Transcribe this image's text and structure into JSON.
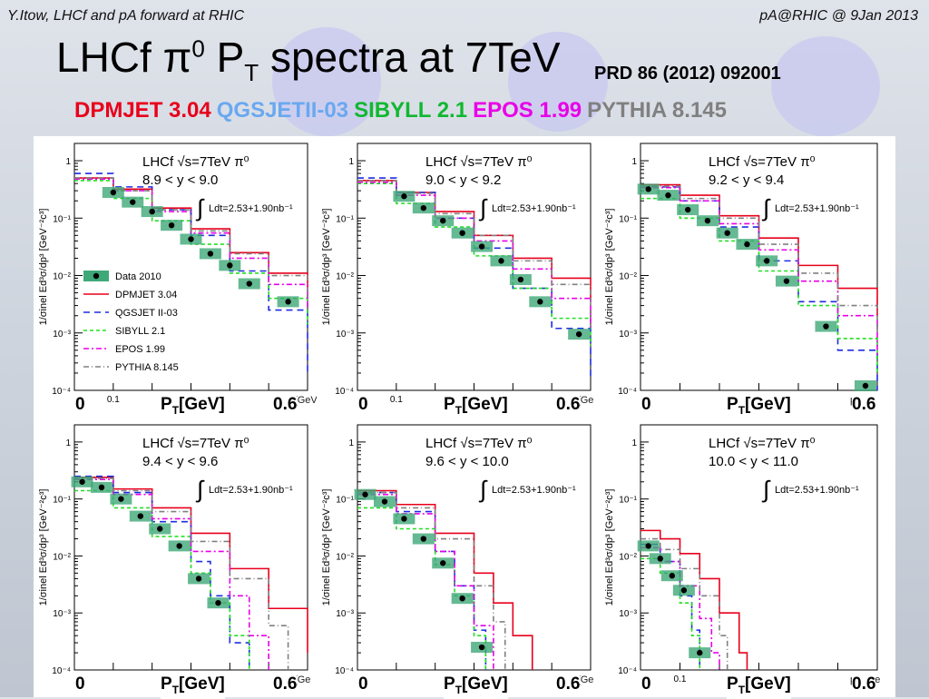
{
  "header": {
    "left": "Y.Itow,  LHCf and pA forward at RHIC",
    "right": "pA@RHIC @ 9Jan 2013"
  },
  "title": {
    "text_a": "LHCf ",
    "pi": "π",
    "sup": "0",
    "text_b": " P",
    "sub": "T",
    "text_c": " spectra at 7TeV"
  },
  "reference": "PRD 86 (2012) 092001",
  "models_line": [
    {
      "name": "DPMJET",
      "version": "3.04",
      "color": "#e8001c"
    },
    {
      "name": "QGSJETII-03",
      "version": "",
      "color": "#6aa8f0"
    },
    {
      "name": "SIBYLL",
      "version": "2.1",
      "color": "#10b830"
    },
    {
      "name": "EPOS",
      "version": "1.99",
      "color": "#e800e8"
    },
    {
      "name": "PYTHIA",
      "version": "8.145",
      "color": "#808080"
    }
  ],
  "colors": {
    "data": "#000000",
    "data_box": "#3fa878",
    "dpmjet": "#e8001c",
    "qgsjet": "#1c2ce0",
    "sibyll": "#22e022",
    "epos": "#e800e8",
    "pythia": "#808080"
  },
  "footer_labels": {
    "zero": "0",
    "max": "0.6",
    "pt_p": "P",
    "pt_sub": "T",
    "pt_unit": "[GeV]"
  },
  "chart_data": [
    {
      "type": "line",
      "label1": "LHCf √s=7TeV π⁰",
      "label2": "8.9 < y < 9.0",
      "lumi": "Ldt=2.53+1.90nb⁻¹",
      "ylabel": "1/σinel Ed³σ/dp³ [GeV⁻²c³]",
      "xlabel": "pT [GeV]",
      "xlim": [
        0,
        0.6
      ],
      "yscale": "log",
      "ylim": [
        0.0001,
        2
      ],
      "yticks": [
        "10⁻⁴",
        "10⁻³",
        "10⁻²",
        "10⁻¹",
        "1"
      ],
      "xtick": "0.1",
      "legend": true,
      "legend_entries": [
        "Data 2010",
        "DPMJET 3.04",
        "QGSJET II-03",
        "SIBYLL 2.1",
        "EPOS 1.99",
        "PYTHIA 8.145"
      ],
      "data": {
        "x": [
          0.1,
          0.15,
          0.2,
          0.25,
          0.3,
          0.35,
          0.4,
          0.45,
          0.55
        ],
        "y": [
          0.28,
          0.19,
          0.13,
          0.075,
          0.043,
          0.024,
          0.015,
          0.0072,
          0.0035
        ]
      },
      "models": {
        "dpmjet": [
          [
            0,
            0.5
          ],
          [
            0.1,
            0.32
          ],
          [
            0.2,
            0.15
          ],
          [
            0.3,
            0.065
          ],
          [
            0.4,
            0.025
          ],
          [
            0.5,
            0.011
          ],
          [
            0.6,
            0.006
          ]
        ],
        "qgsjet": [
          [
            0,
            0.6
          ],
          [
            0.1,
            0.35
          ],
          [
            0.2,
            0.14
          ],
          [
            0.3,
            0.05
          ],
          [
            0.4,
            0.012
          ],
          [
            0.5,
            0.0025
          ],
          [
            0.6,
            0.0002
          ]
        ],
        "sibyll": [
          [
            0,
            0.45
          ],
          [
            0.1,
            0.22
          ],
          [
            0.2,
            0.09
          ],
          [
            0.3,
            0.035
          ],
          [
            0.4,
            0.011
          ],
          [
            0.5,
            0.004
          ],
          [
            0.6,
            0.0014
          ]
        ],
        "epos": [
          [
            0,
            0.48
          ],
          [
            0.1,
            0.3
          ],
          [
            0.2,
            0.13
          ],
          [
            0.3,
            0.055
          ],
          [
            0.4,
            0.02
          ],
          [
            0.5,
            0.007
          ],
          [
            0.6,
            0.0025
          ]
        ],
        "pythia": [
          [
            0,
            0.5
          ],
          [
            0.1,
            0.3
          ],
          [
            0.2,
            0.14
          ],
          [
            0.3,
            0.06
          ],
          [
            0.4,
            0.024
          ],
          [
            0.5,
            0.01
          ],
          [
            0.6,
            0.005
          ]
        ]
      }
    },
    {
      "type": "line",
      "label1": "LHCf √s=7TeV π⁰",
      "label2": "9.0 < y < 9.2",
      "lumi": "Ldt=2.53+1.90nb⁻¹",
      "ylabel": "1/σinel Ed³σ/dp³ [GeV⁻²c³]",
      "xlabel": "pT [Ge",
      "xlim": [
        0,
        0.6
      ],
      "yscale": "log",
      "ylim": [
        0.0001,
        2
      ],
      "yticks": [
        "10⁻⁴",
        "10⁻³",
        "10⁻²",
        "10⁻¹",
        "1"
      ],
      "xtick": "0.1",
      "legend": false,
      "data": {
        "x": [
          0.12,
          0.17,
          0.22,
          0.27,
          0.32,
          0.37,
          0.42,
          0.47,
          0.57
        ],
        "y": [
          0.24,
          0.15,
          0.09,
          0.055,
          0.032,
          0.018,
          0.0085,
          0.0035,
          0.00095
        ]
      },
      "models": {
        "dpmjet": [
          [
            0,
            0.45
          ],
          [
            0.1,
            0.28
          ],
          [
            0.2,
            0.13
          ],
          [
            0.3,
            0.05
          ],
          [
            0.4,
            0.02
          ],
          [
            0.5,
            0.009
          ],
          [
            0.6,
            0.004
          ]
        ],
        "qgsjet": [
          [
            0,
            0.5
          ],
          [
            0.1,
            0.28
          ],
          [
            0.2,
            0.1
          ],
          [
            0.3,
            0.03
          ],
          [
            0.4,
            0.006
          ],
          [
            0.5,
            0.0012
          ],
          [
            0.6,
            0.00015
          ]
        ],
        "sibyll": [
          [
            0,
            0.4
          ],
          [
            0.1,
            0.18
          ],
          [
            0.2,
            0.07
          ],
          [
            0.3,
            0.022
          ],
          [
            0.4,
            0.006
          ],
          [
            0.5,
            0.0018
          ],
          [
            0.6,
            0.0006
          ]
        ],
        "epos": [
          [
            0,
            0.42
          ],
          [
            0.1,
            0.25
          ],
          [
            0.2,
            0.1
          ],
          [
            0.3,
            0.04
          ],
          [
            0.4,
            0.013
          ],
          [
            0.5,
            0.004
          ],
          [
            0.6,
            0.0012
          ]
        ],
        "pythia": [
          [
            0,
            0.45
          ],
          [
            0.1,
            0.27
          ],
          [
            0.2,
            0.12
          ],
          [
            0.3,
            0.05
          ],
          [
            0.4,
            0.018
          ],
          [
            0.5,
            0.007
          ],
          [
            0.6,
            0.003
          ]
        ]
      }
    },
    {
      "type": "line",
      "label1": "LHCf √s=7TeV π⁰",
      "label2": "9.2 < y < 9.4",
      "lumi": "Ldt=2.53+1.90nb⁻¹",
      "ylabel": "1/σinel Ed³σ/dp³ [GeV⁻²c³]",
      "xlabel": "pT",
      "xlim": [
        0,
        0.6
      ],
      "yscale": "log",
      "ylim": [
        0.0001,
        2
      ],
      "yticks": [
        "10⁻⁴",
        "10⁻³",
        "10⁻²",
        "10⁻¹",
        "1"
      ],
      "xtick": "",
      "legend": false,
      "data": {
        "x": [
          0.02,
          0.07,
          0.12,
          0.17,
          0.22,
          0.27,
          0.32,
          0.37,
          0.47,
          0.57
        ],
        "y": [
          0.32,
          0.25,
          0.14,
          0.09,
          0.055,
          0.035,
          0.018,
          0.008,
          0.0013,
          0.00012
        ]
      },
      "models": {
        "dpmjet": [
          [
            0,
            0.38
          ],
          [
            0.1,
            0.25
          ],
          [
            0.2,
            0.11
          ],
          [
            0.3,
            0.045
          ],
          [
            0.4,
            0.015
          ],
          [
            0.5,
            0.006
          ],
          [
            0.6,
            0.002
          ]
        ],
        "qgsjet": [
          [
            0,
            0.35
          ],
          [
            0.1,
            0.2
          ],
          [
            0.2,
            0.07
          ],
          [
            0.3,
            0.018
          ],
          [
            0.4,
            0.0035
          ],
          [
            0.5,
            0.0005
          ],
          [
            0.6,
            8e-05
          ]
        ],
        "sibyll": [
          [
            0,
            0.22
          ],
          [
            0.1,
            0.1
          ],
          [
            0.2,
            0.04
          ],
          [
            0.3,
            0.012
          ],
          [
            0.4,
            0.003
          ],
          [
            0.5,
            0.0008
          ],
          [
            0.6,
            0.0002
          ]
        ],
        "epos": [
          [
            0,
            0.34
          ],
          [
            0.1,
            0.2
          ],
          [
            0.2,
            0.08
          ],
          [
            0.3,
            0.028
          ],
          [
            0.4,
            0.008
          ],
          [
            0.5,
            0.002
          ],
          [
            0.6,
            0.0004
          ]
        ],
        "pythia": [
          [
            0,
            0.36
          ],
          [
            0.1,
            0.22
          ],
          [
            0.2,
            0.1
          ],
          [
            0.3,
            0.035
          ],
          [
            0.4,
            0.011
          ],
          [
            0.5,
            0.003
          ],
          [
            0.6,
            0.001
          ]
        ]
      }
    },
    {
      "type": "line",
      "label1": "LHCf √s=7TeV π⁰",
      "label2": "9.4 < y < 9.6",
      "lumi": "Ldt=2.53+1.90nb⁻¹",
      "ylabel": "1/σinel Ed³σ/dp³ [GeV⁻²c³]",
      "xlabel": "pT [Ge",
      "xlim": [
        0,
        0.6
      ],
      "yscale": "log",
      "ylim": [
        0.0001,
        2
      ],
      "yticks": [
        "10⁻⁴",
        "10⁻³",
        "10⁻²",
        "10⁻¹",
        "1"
      ],
      "xtick": "",
      "legend": false,
      "data": {
        "x": [
          0.02,
          0.07,
          0.12,
          0.17,
          0.22,
          0.27,
          0.32,
          0.37
        ],
        "y": [
          0.2,
          0.16,
          0.1,
          0.05,
          0.03,
          0.015,
          0.004,
          0.0015
        ]
      },
      "models": {
        "dpmjet": [
          [
            0,
            0.24
          ],
          [
            0.1,
            0.15
          ],
          [
            0.2,
            0.07
          ],
          [
            0.3,
            0.025
          ],
          [
            0.4,
            0.006
          ],
          [
            0.5,
            0.0012
          ],
          [
            0.6,
            0.0002
          ]
        ],
        "qgsjet": [
          [
            0,
            0.25
          ],
          [
            0.1,
            0.13
          ],
          [
            0.2,
            0.04
          ],
          [
            0.3,
            0.008
          ],
          [
            0.35,
            0.002
          ],
          [
            0.4,
            0.0003
          ],
          [
            0.45,
            0.0001
          ]
        ],
        "sibyll": [
          [
            0,
            0.14
          ],
          [
            0.1,
            0.07
          ],
          [
            0.2,
            0.022
          ],
          [
            0.3,
            0.005
          ],
          [
            0.35,
            0.0015
          ],
          [
            0.4,
            0.0004
          ],
          [
            0.45,
            0.0001
          ]
        ],
        "epos": [
          [
            0,
            0.22
          ],
          [
            0.1,
            0.12
          ],
          [
            0.2,
            0.045
          ],
          [
            0.3,
            0.012
          ],
          [
            0.4,
            0.002
          ],
          [
            0.45,
            0.0004
          ],
          [
            0.5,
            0.0001
          ]
        ],
        "pythia": [
          [
            0,
            0.23
          ],
          [
            0.1,
            0.14
          ],
          [
            0.2,
            0.06
          ],
          [
            0.3,
            0.018
          ],
          [
            0.4,
            0.004
          ],
          [
            0.5,
            0.0006
          ],
          [
            0.55,
            0.0001
          ]
        ]
      }
    },
    {
      "type": "line",
      "label1": "LHCf √s=7TeV π⁰",
      "label2": "9.6 < y < 10.0",
      "lumi": "Ldt=2.53+1.90nb⁻¹",
      "ylabel": "1/σinel Ed³σ/dp³ [GeV⁻²c³]",
      "xlabel": "pT [Ge",
      "xlim": [
        0,
        0.6
      ],
      "yscale": "log",
      "ylim": [
        0.0001,
        2
      ],
      "yticks": [
        "10⁻⁴",
        "10⁻³",
        "10⁻²",
        "10⁻¹",
        "1"
      ],
      "xtick": "",
      "legend": false,
      "data": {
        "x": [
          0.02,
          0.07,
          0.12,
          0.17,
          0.22,
          0.27,
          0.32
        ],
        "y": [
          0.12,
          0.09,
          0.045,
          0.02,
          0.0075,
          0.0018,
          0.00025
        ]
      },
      "models": {
        "dpmjet": [
          [
            0,
            0.14
          ],
          [
            0.1,
            0.08
          ],
          [
            0.2,
            0.025
          ],
          [
            0.3,
            0.005
          ],
          [
            0.35,
            0.0015
          ],
          [
            0.4,
            0.0004
          ],
          [
            0.45,
            0.0001
          ]
        ],
        "qgsjet": [
          [
            0,
            0.13
          ],
          [
            0.1,
            0.06
          ],
          [
            0.2,
            0.012
          ],
          [
            0.25,
            0.003
          ],
          [
            0.3,
            0.0005
          ],
          [
            0.33,
            0.0001
          ]
        ],
        "sibyll": [
          [
            0,
            0.07
          ],
          [
            0.1,
            0.03
          ],
          [
            0.2,
            0.007
          ],
          [
            0.25,
            0.002
          ],
          [
            0.3,
            0.0004
          ],
          [
            0.33,
            0.0001
          ]
        ],
        "epos": [
          [
            0,
            0.12
          ],
          [
            0.1,
            0.055
          ],
          [
            0.2,
            0.012
          ],
          [
            0.25,
            0.003
          ],
          [
            0.3,
            0.0006
          ],
          [
            0.35,
            0.0001
          ]
        ],
        "pythia": [
          [
            0,
            0.13
          ],
          [
            0.1,
            0.07
          ],
          [
            0.2,
            0.02
          ],
          [
            0.3,
            0.003
          ],
          [
            0.35,
            0.0007
          ],
          [
            0.38,
            0.0001
          ]
        ]
      }
    },
    {
      "type": "line",
      "label1": "LHCf √s=7TeV π⁰",
      "label2": "10.0 < y < 11.0",
      "lumi": "Ldt=2.53+1.90nb⁻¹",
      "ylabel": "1/σinel Ed³σ/dp³ [GeV⁻²c³]",
      "xlabel": "pT [Ge",
      "xlim": [
        0,
        0.6
      ],
      "yscale": "log",
      "ylim": [
        0.0001,
        2
      ],
      "yticks": [
        "10⁻⁴",
        "10⁻³",
        "10⁻²",
        "10⁻¹",
        "1"
      ],
      "xtick": "0.1",
      "legend": false,
      "data": {
        "x": [
          0.02,
          0.05,
          0.08,
          0.11,
          0.15
        ],
        "y": [
          0.015,
          0.009,
          0.0045,
          0.0025,
          0.0002
        ]
      },
      "models": {
        "dpmjet": [
          [
            0,
            0.028
          ],
          [
            0.05,
            0.02
          ],
          [
            0.1,
            0.011
          ],
          [
            0.15,
            0.004
          ],
          [
            0.2,
            0.001
          ],
          [
            0.25,
            0.0002
          ],
          [
            0.27,
            0.0001
          ]
        ],
        "qgsjet": [
          [
            0,
            0.016
          ],
          [
            0.05,
            0.008
          ],
          [
            0.1,
            0.002
          ],
          [
            0.13,
            0.0005
          ],
          [
            0.15,
            0.0001
          ]
        ],
        "sibyll": [
          [
            0,
            0.009
          ],
          [
            0.05,
            0.005
          ],
          [
            0.1,
            0.0015
          ],
          [
            0.13,
            0.0004
          ],
          [
            0.15,
            0.0001
          ]
        ],
        "epos": [
          [
            0,
            0.014
          ],
          [
            0.05,
            0.008
          ],
          [
            0.1,
            0.003
          ],
          [
            0.15,
            0.0008
          ],
          [
            0.18,
            0.0002
          ],
          [
            0.2,
            0.0001
          ]
        ],
        "pythia": [
          [
            0,
            0.02
          ],
          [
            0.05,
            0.013
          ],
          [
            0.1,
            0.006
          ],
          [
            0.15,
            0.002
          ],
          [
            0.2,
            0.0004
          ],
          [
            0.22,
            0.0001
          ]
        ]
      }
    }
  ]
}
